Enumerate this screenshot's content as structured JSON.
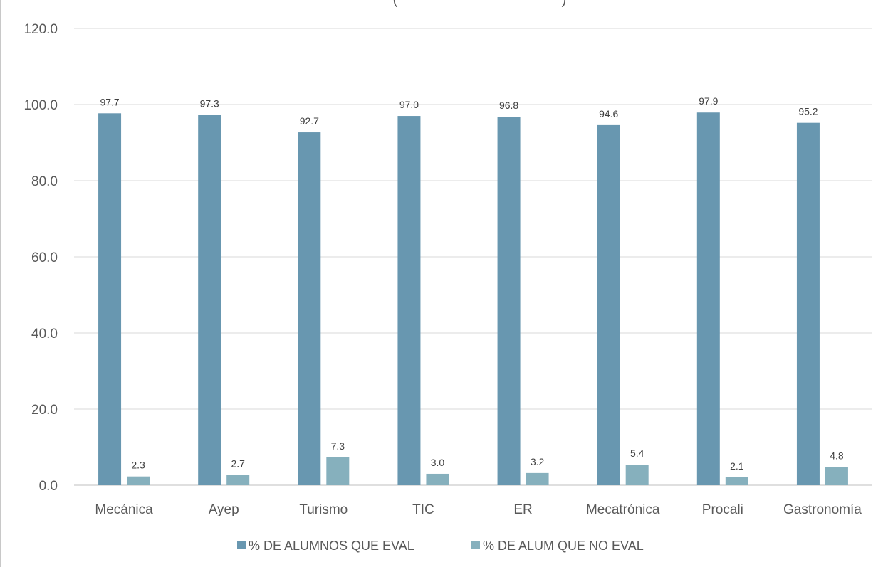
{
  "chart_data": {
    "type": "bar",
    "title": "(",
    "title_close": ")",
    "categories": [
      "Mecánica",
      "Ayep",
      "Turismo",
      "TIC",
      "ER",
      "Mecatrónica",
      "Procali",
      "Gastronomía"
    ],
    "series": [
      {
        "name": "% DE ALUMNOS QUE EVAL",
        "color": "#6897b0",
        "values": [
          97.7,
          97.3,
          92.7,
          97.0,
          96.8,
          94.6,
          97.9,
          95.2
        ],
        "labels": [
          "97.7",
          "97.3",
          "92.7",
          "97.0",
          "96.8",
          "94.6",
          "97.9",
          "95.2"
        ]
      },
      {
        "name": "% DE ALUM QUE NO EVAL",
        "color": "#86b0bd",
        "values": [
          2.3,
          2.7,
          7.3,
          3.0,
          3.2,
          5.4,
          2.1,
          4.8
        ],
        "labels": [
          "2.3",
          "2.7",
          "7.3",
          "3.0",
          "3.2",
          "5.4",
          "2.1",
          "4.8"
        ]
      }
    ],
    "ylim": [
      0,
      120
    ],
    "yticks": [
      0,
      20,
      40,
      60,
      80,
      100,
      120
    ],
    "ytick_labels": [
      "0.0",
      "20.0",
      "40.0",
      "60.0",
      "80.0",
      "100.0",
      "120.0"
    ],
    "grid": true,
    "legend_position": "bottom",
    "xlabel": "",
    "ylabel": ""
  }
}
